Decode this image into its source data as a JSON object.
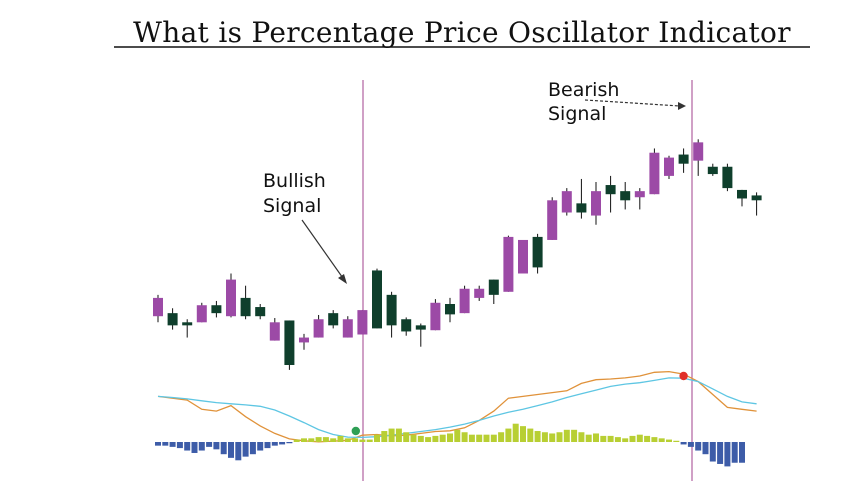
{
  "title": "What is Percentage Price Oscillator Indicator",
  "annotations": {
    "bullish": [
      "Bullish",
      "Signal"
    ],
    "bearish": [
      "Bearish",
      "Signal"
    ]
  },
  "colors": {
    "bull": "#9c4aa6",
    "bear": "#0f3f2c",
    "ppo_line": "#e0923a",
    "signal_line": "#5ec6e3",
    "hist_positive": "#b8cf33",
    "hist_negative": "#3d5ca8",
    "marker_bullish": "#2e9f55",
    "marker_bearish": "#e0302a",
    "vline": "#a0428e"
  },
  "chart_data": [
    {
      "type": "candlestick",
      "price_range": [
        -110,
        440
      ],
      "signal_candle_index": {
        "bullish": 13,
        "bearish": 36
      },
      "candles": [
        {
          "o": 80,
          "c": 110,
          "h": 115,
          "l": 70
        },
        {
          "o": 85,
          "c": 65,
          "h": 93,
          "l": 58
        },
        {
          "o": 70,
          "c": 65,
          "h": 75,
          "l": 45
        },
        {
          "o": 70,
          "c": 98,
          "h": 102,
          "l": 70
        },
        {
          "o": 98,
          "c": 85,
          "h": 105,
          "l": 78
        },
        {
          "o": 80,
          "c": 140,
          "h": 150,
          "l": 78
        },
        {
          "o": 110,
          "c": 80,
          "h": 130,
          "l": 75
        },
        {
          "o": 95,
          "c": 80,
          "h": 100,
          "l": 75
        },
        {
          "o": 40,
          "c": 70,
          "h": 77,
          "l": 40
        },
        {
          "o": 73,
          "c": 0,
          "h": 73,
          "l": -8
        },
        {
          "o": 37,
          "c": 45,
          "h": 51,
          "l": 25
        },
        {
          "o": 45,
          "c": 75,
          "h": 82,
          "l": 45
        },
        {
          "o": 85,
          "c": 65,
          "h": 90,
          "l": 60
        },
        {
          "o": 45,
          "c": 75,
          "h": 80,
          "l": 45
        },
        {
          "o": 50,
          "c": 90,
          "h": 90,
          "l": 50
        },
        {
          "o": 155,
          "c": 60,
          "h": 158,
          "l": 60
        },
        {
          "o": 115,
          "c": 65,
          "h": 120,
          "l": 45
        },
        {
          "o": 75,
          "c": 55,
          "h": 78,
          "l": 48
        },
        {
          "o": 65,
          "c": 58,
          "h": 68,
          "l": 30
        },
        {
          "o": 57,
          "c": 102,
          "h": 108,
          "l": 57
        },
        {
          "o": 100,
          "c": 83,
          "h": 110,
          "l": 70
        },
        {
          "o": 85,
          "c": 125,
          "h": 130,
          "l": 85
        },
        {
          "o": 110,
          "c": 125,
          "h": 130,
          "l": 105
        },
        {
          "o": 140,
          "c": 115,
          "h": 140,
          "l": 100
        },
        {
          "o": 120,
          "c": 210,
          "h": 212,
          "l": 120
        },
        {
          "o": 150,
          "c": 205,
          "h": 205,
          "l": 150
        },
        {
          "o": 210,
          "c": 160,
          "h": 215,
          "l": 150
        },
        {
          "o": 205,
          "c": 270,
          "h": 275,
          "l": 205
        },
        {
          "o": 250,
          "c": 285,
          "h": 290,
          "l": 245
        },
        {
          "o": 265,
          "c": 250,
          "h": 305,
          "l": 240
        },
        {
          "o": 245,
          "c": 285,
          "h": 300,
          "l": 230
        },
        {
          "o": 295,
          "c": 280,
          "h": 310,
          "l": 250
        },
        {
          "o": 285,
          "c": 270,
          "h": 300,
          "l": 255
        },
        {
          "o": 275,
          "c": 285,
          "h": 290,
          "l": 255
        },
        {
          "o": 280,
          "c": 348,
          "h": 355,
          "l": 280
        },
        {
          "o": 310,
          "c": 340,
          "h": 343,
          "l": 305
        },
        {
          "o": 345,
          "c": 330,
          "h": 355,
          "l": 315
        },
        {
          "o": 335,
          "c": 365,
          "h": 370,
          "l": 310
        },
        {
          "o": 325,
          "c": 313,
          "h": 330,
          "l": 310
        },
        {
          "o": 325,
          "c": 290,
          "h": 330,
          "l": 285
        },
        {
          "o": 287,
          "c": 273,
          "h": 287,
          "l": 260
        },
        {
          "o": 278,
          "c": 270,
          "h": 283,
          "l": 245
        }
      ]
    },
    {
      "type": "line",
      "series": [
        {
          "key": "ppo",
          "values": [
            -55,
            -60,
            -65,
            -90,
            -95,
            -80,
            -110,
            -135,
            -155,
            -170,
            -175,
            -178,
            -176,
            -174,
            -160,
            -158,
            -162,
            -160,
            -155,
            -150,
            -148,
            -140,
            -120,
            -95,
            -60,
            -55,
            -50,
            -45,
            -40,
            -20,
            -10,
            -8,
            -5,
            0,
            10,
            12,
            5,
            -15,
            -50,
            -85,
            -90,
            -95
          ]
        },
        {
          "key": "signal",
          "values": [
            -55,
            -58,
            -62,
            -67,
            -72,
            -75,
            -78,
            -82,
            -92,
            -108,
            -126,
            -145,
            -158,
            -165,
            -166,
            -164,
            -160,
            -155,
            -150,
            -145,
            -138,
            -130,
            -120,
            -108,
            -98,
            -90,
            -80,
            -70,
            -58,
            -48,
            -38,
            -28,
            -22,
            -18,
            -12,
            -5,
            -6,
            -15,
            -35,
            -55,
            -70,
            -75
          ]
        }
      ],
      "crossovers": [
        {
          "type": "bullish",
          "index": 13,
          "value": -165
        },
        {
          "type": "bearish",
          "index": 36,
          "value": 0
        }
      ]
    },
    {
      "type": "bar",
      "name": "histogram",
      "values": [
        -3,
        -3,
        -4,
        -5,
        -7,
        -9,
        -7,
        -4,
        -6,
        -10,
        -13,
        -15,
        -12,
        -10,
        -7,
        -5,
        -3,
        -2,
        -1,
        2,
        3,
        3,
        4,
        4,
        3,
        5,
        3,
        3,
        2,
        2,
        6,
        9,
        11,
        11,
        8,
        6,
        5,
        4,
        5,
        6,
        7,
        10,
        8,
        6,
        6,
        6,
        6,
        8,
        11,
        15,
        13,
        11,
        9,
        8,
        7,
        8,
        10,
        10,
        8,
        6,
        7,
        5,
        5,
        4,
        3,
        5,
        6,
        5,
        4,
        3,
        2,
        1,
        -2,
        -4,
        -7,
        -10,
        -16,
        -18,
        -20,
        -17,
        -17
      ]
    }
  ]
}
